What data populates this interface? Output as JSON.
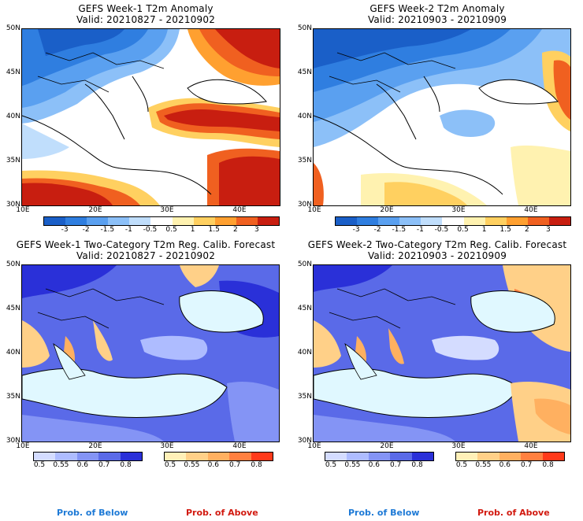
{
  "panels": [
    {
      "title": "GEFS Week-1 T2m Anomaly",
      "valid": "Valid: 20210827 - 20210902"
    },
    {
      "title": "GEFS Week-2 T2m Anomaly",
      "valid": "Valid: 20210903 - 20210909"
    },
    {
      "title": "GEFS Week-1 Two-Category T2m Reg. Calib. Forecast",
      "valid": "Valid: 20210827 - 20210902"
    },
    {
      "title": "GEFS Week-2 Two-Category T2m Reg. Calib. Forecast",
      "valid": "Valid: 20210903 - 20210909"
    }
  ],
  "lat_labels": [
    "50N",
    "45N",
    "40N",
    "35N",
    "30N"
  ],
  "lon_labels": [
    "10E",
    "20E",
    "30E",
    "40E"
  ],
  "anomaly_ticks": [
    "-3",
    "-2",
    "-1.5",
    "-1",
    "-0.5",
    "0.5",
    "1",
    "1.5",
    "2",
    "3"
  ],
  "anomaly_colors": [
    "#1a5fc8",
    "#2f7ee0",
    "#5aa0f0",
    "#8cc0f8",
    "#c0defc",
    "#ffffff",
    "#fff2b0",
    "#ffd060",
    "#ffa030",
    "#f06020",
    "#c81e10"
  ],
  "prob_ticks": [
    "0.5",
    "0.55",
    "0.6",
    "0.7",
    "0.8"
  ],
  "prob_below_colors": [
    "#d4dcff",
    "#aebcff",
    "#8494f5",
    "#5a6ae8",
    "#2a30d8"
  ],
  "prob_above_colors": [
    "#fff0b8",
    "#ffd088",
    "#ffb060",
    "#ff8040",
    "#ff3a1a"
  ],
  "legend": {
    "below": "Prob. of Below",
    "above": "Prob. of Above"
  },
  "colors": {
    "sea": "#e0f8ff",
    "coast": "#000000"
  }
}
